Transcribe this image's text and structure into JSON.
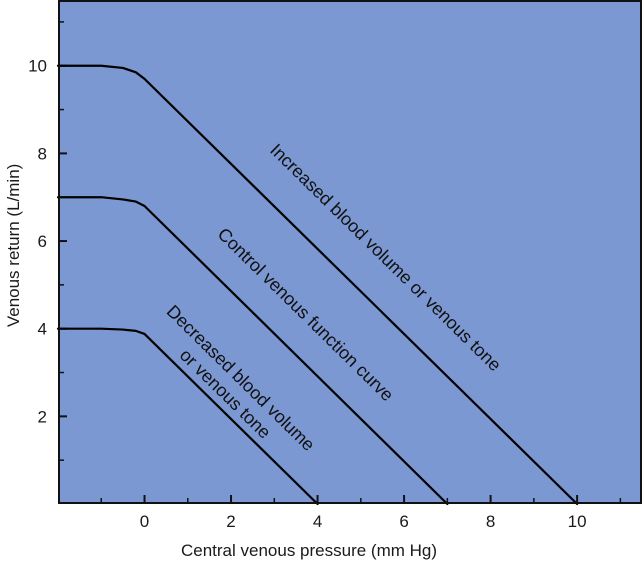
{
  "chart_data": {
    "type": "line",
    "xlabel": "Central venous pressure (mm Hg)",
    "ylabel": "Venous return (L/min)",
    "xlim": [
      -2,
      11.5
    ],
    "ylim": [
      0,
      11.5
    ],
    "x_ticks": [
      0,
      2,
      4,
      6,
      8,
      10
    ],
    "y_ticks": [
      2,
      4,
      6,
      8,
      10
    ],
    "x_minor_ticks": [
      -1,
      1,
      3,
      5,
      7,
      9,
      11
    ],
    "y_minor_ticks": [
      1,
      3,
      5,
      7,
      9,
      11
    ],
    "grid": false,
    "legend": "none",
    "background_color": "#7b98d2",
    "line_color": "#000000",
    "series": [
      {
        "label": "Increased blood volume or venous tone",
        "points": [
          [
            -2,
            10
          ],
          [
            -1,
            10
          ],
          [
            -0.5,
            9.95
          ],
          [
            -0.2,
            9.85
          ],
          [
            0,
            9.7
          ],
          [
            10,
            0
          ]
        ]
      },
      {
        "label": "Control venous function curve",
        "points": [
          [
            -2,
            7
          ],
          [
            -1,
            7
          ],
          [
            -0.5,
            6.95
          ],
          [
            -0.2,
            6.9
          ],
          [
            0,
            6.8
          ],
          [
            7,
            0
          ]
        ]
      },
      {
        "label": "Decreased blood volume\nor venous tone",
        "points": [
          [
            -2,
            4
          ],
          [
            -1,
            4
          ],
          [
            -0.5,
            3.98
          ],
          [
            -0.2,
            3.95
          ],
          [
            0,
            3.88
          ],
          [
            4,
            0
          ]
        ]
      }
    ]
  }
}
